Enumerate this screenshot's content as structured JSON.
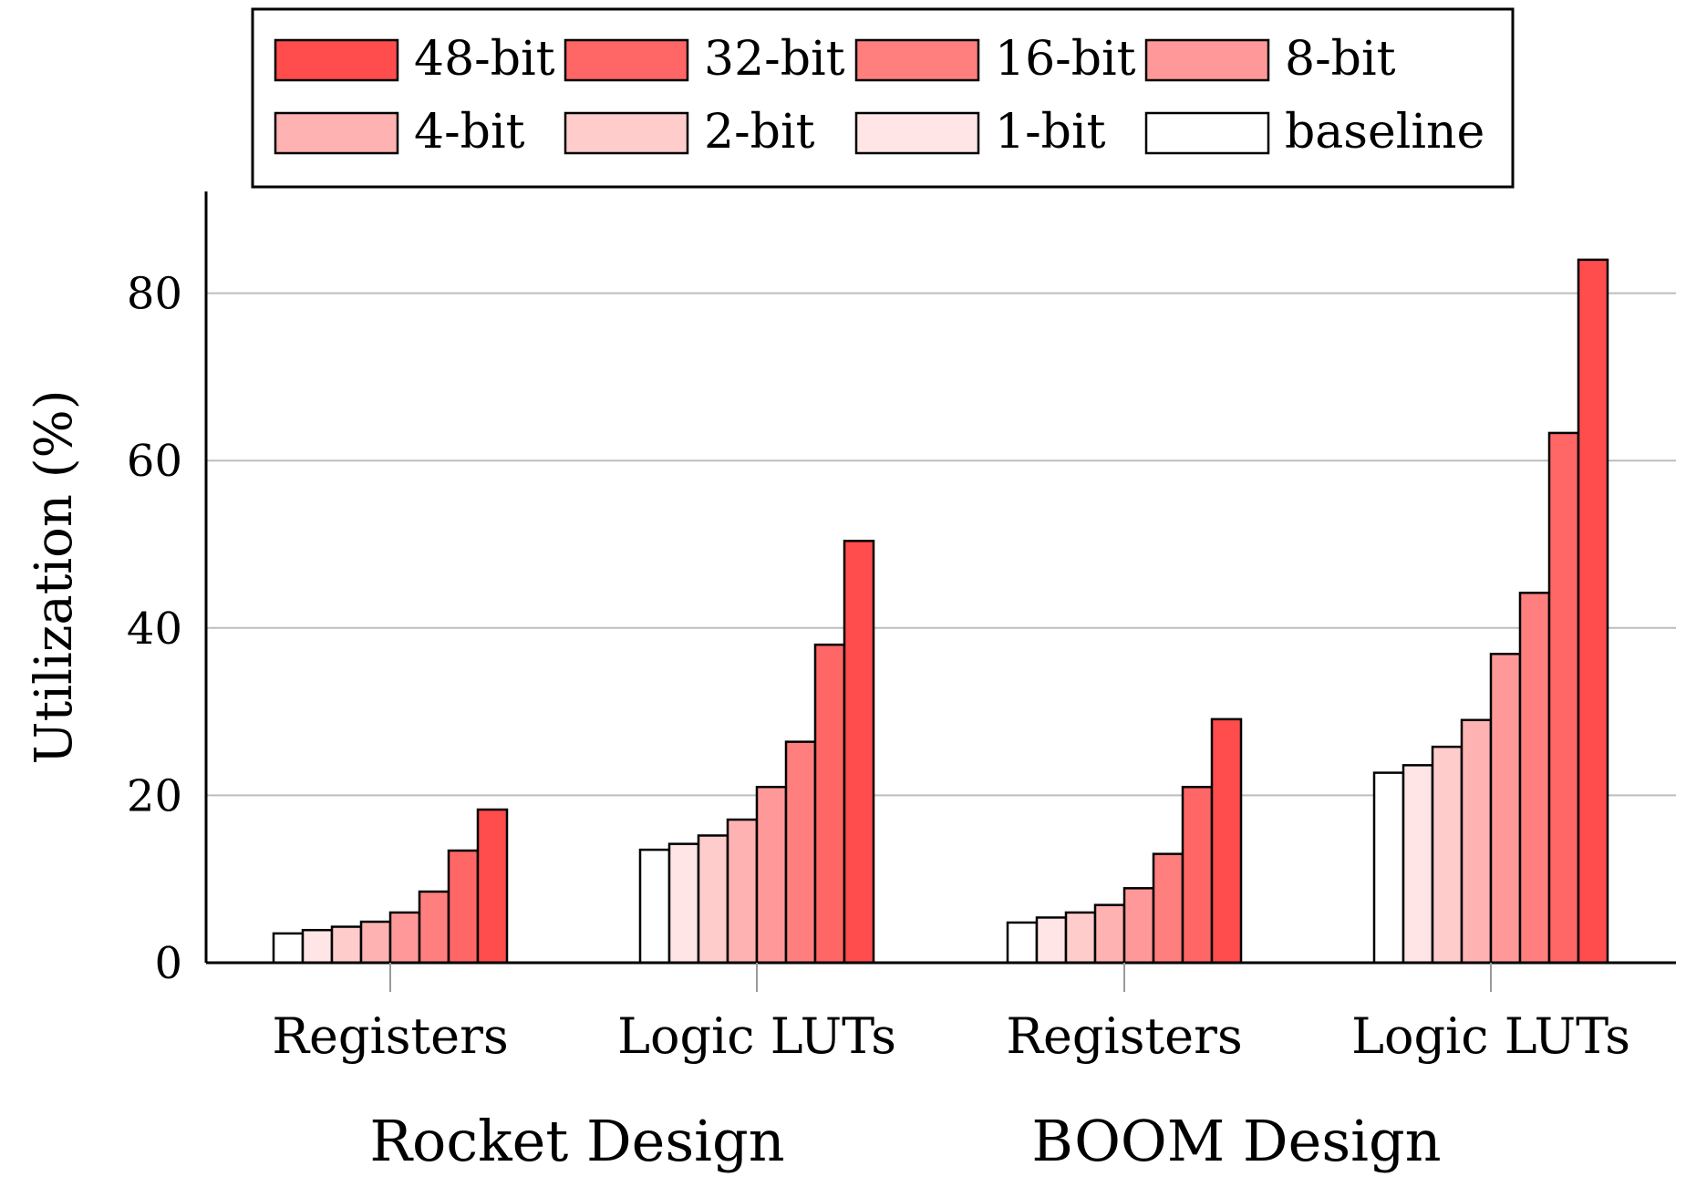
{
  "chart_data": {
    "type": "bar",
    "ylabel": "Utilization (%)",
    "ylim": [
      0,
      92
    ],
    "yticks": [
      0,
      20,
      40,
      60,
      80
    ],
    "grid": "horizontal",
    "legend_position": "top",
    "groups": [
      {
        "name": "Rocket Design",
        "categories": [
          "Registers",
          "Logic LUTs"
        ]
      },
      {
        "name": "BOOM Design",
        "categories": [
          "Registers",
          "Logic LUTs"
        ]
      }
    ],
    "categories": [
      "Registers",
      "Logic LUTs",
      "Registers",
      "Logic LUTs"
    ],
    "series": [
      {
        "name": "baseline",
        "color": "#ffffff",
        "values": [
          3.5,
          13.5,
          4.8,
          22.7
        ]
      },
      {
        "name": "1-bit",
        "color": "#ffe5e5",
        "values": [
          3.9,
          14.2,
          5.4,
          23.6
        ]
      },
      {
        "name": "2-bit",
        "color": "#ffcccc",
        "values": [
          4.3,
          15.2,
          6.0,
          25.8
        ]
      },
      {
        "name": "4-bit",
        "color": "#ffb2b2",
        "values": [
          4.9,
          17.1,
          6.9,
          29.0
        ]
      },
      {
        "name": "8-bit",
        "color": "#ff9999",
        "values": [
          6.0,
          21.0,
          8.9,
          36.9
        ]
      },
      {
        "name": "16-bit",
        "color": "#ff7f7f",
        "values": [
          8.5,
          26.4,
          13.0,
          44.2
        ]
      },
      {
        "name": "32-bit",
        "color": "#ff6666",
        "values": [
          13.4,
          38.0,
          21.0,
          63.3
        ]
      },
      {
        "name": "48-bit",
        "color": "#ff4c4c",
        "values": [
          18.3,
          50.4,
          29.1,
          84.0
        ]
      }
    ],
    "legend_order": [
      "48-bit",
      "32-bit",
      "16-bit",
      "8-bit",
      "4-bit",
      "2-bit",
      "1-bit",
      "baseline"
    ]
  }
}
